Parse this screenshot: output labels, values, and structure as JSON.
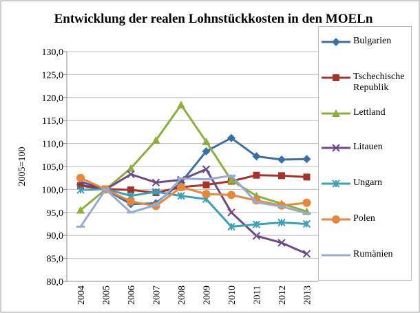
{
  "chart_data": {
    "type": "line",
    "title": "Entwicklung der realen Lohnstückkosten in den MOELn",
    "y_label": "2005=100",
    "categories": [
      "2004",
      "2005",
      "2006",
      "2007",
      "2008",
      "2009",
      "2010",
      "2011",
      "2012",
      "2013"
    ],
    "ylim": [
      80,
      130
    ],
    "yticks": [
      {
        "value": 80,
        "label": "80,0"
      },
      {
        "value": 85,
        "label": "85,0"
      },
      {
        "value": 90,
        "label": "90,0"
      },
      {
        "value": 95,
        "label": "95,0"
      },
      {
        "value": 100,
        "label": "100,0"
      },
      {
        "value": 105,
        "label": "105,0"
      },
      {
        "value": 110,
        "label": "110,0"
      },
      {
        "value": 115,
        "label": "115,0"
      },
      {
        "value": 120,
        "label": "120,0"
      },
      {
        "value": 125,
        "label": "125,0"
      },
      {
        "value": 130,
        "label": "130,0"
      }
    ],
    "grid": true,
    "legend": "right",
    "series": [
      {
        "name": "Bulgarien",
        "color": "#3a6ea5",
        "marker": "diamond",
        "values": [
          101.0,
          100.0,
          96.8,
          97.0,
          101.5,
          108.3,
          111.2,
          107.2,
          106.5,
          106.6
        ]
      },
      {
        "name": "Tschechische Republik",
        "color": "#a5332b",
        "marker": "square",
        "values": [
          100.8,
          100.1,
          99.9,
          99.3,
          100.5,
          101.0,
          101.8,
          103.1,
          103.0,
          102.7
        ]
      },
      {
        "name": "Lettland",
        "color": "#8cae3c",
        "marker": "triangle",
        "values": [
          95.5,
          100.0,
          104.6,
          110.7,
          118.4,
          110.4,
          102.0,
          98.6,
          96.9,
          95.2
        ]
      },
      {
        "name": "Litauen",
        "color": "#6b4a8a",
        "marker": "x",
        "values": [
          101.7,
          100.0,
          103.3,
          101.5,
          102.1,
          104.4,
          95.0,
          89.9,
          88.4,
          86.0
        ]
      },
      {
        "name": "Ungarn",
        "color": "#3aa0b5",
        "marker": "star",
        "values": [
          99.9,
          100.1,
          98.6,
          99.5,
          98.6,
          97.9,
          91.9,
          92.4,
          92.8,
          92.5
        ]
      },
      {
        "name": "Polen",
        "color": "#e8873a",
        "marker": "circle",
        "values": [
          102.5,
          100.0,
          97.4,
          96.4,
          100.5,
          99.0,
          98.8,
          97.6,
          96.5,
          97.1
        ]
      },
      {
        "name": "Rumänien",
        "color": "#94abd6",
        "marker": "plus",
        "values": [
          91.9,
          100.0,
          95.0,
          96.6,
          102.4,
          102.2,
          103.0,
          97.2,
          96.3,
          94.8
        ]
      }
    ]
  }
}
